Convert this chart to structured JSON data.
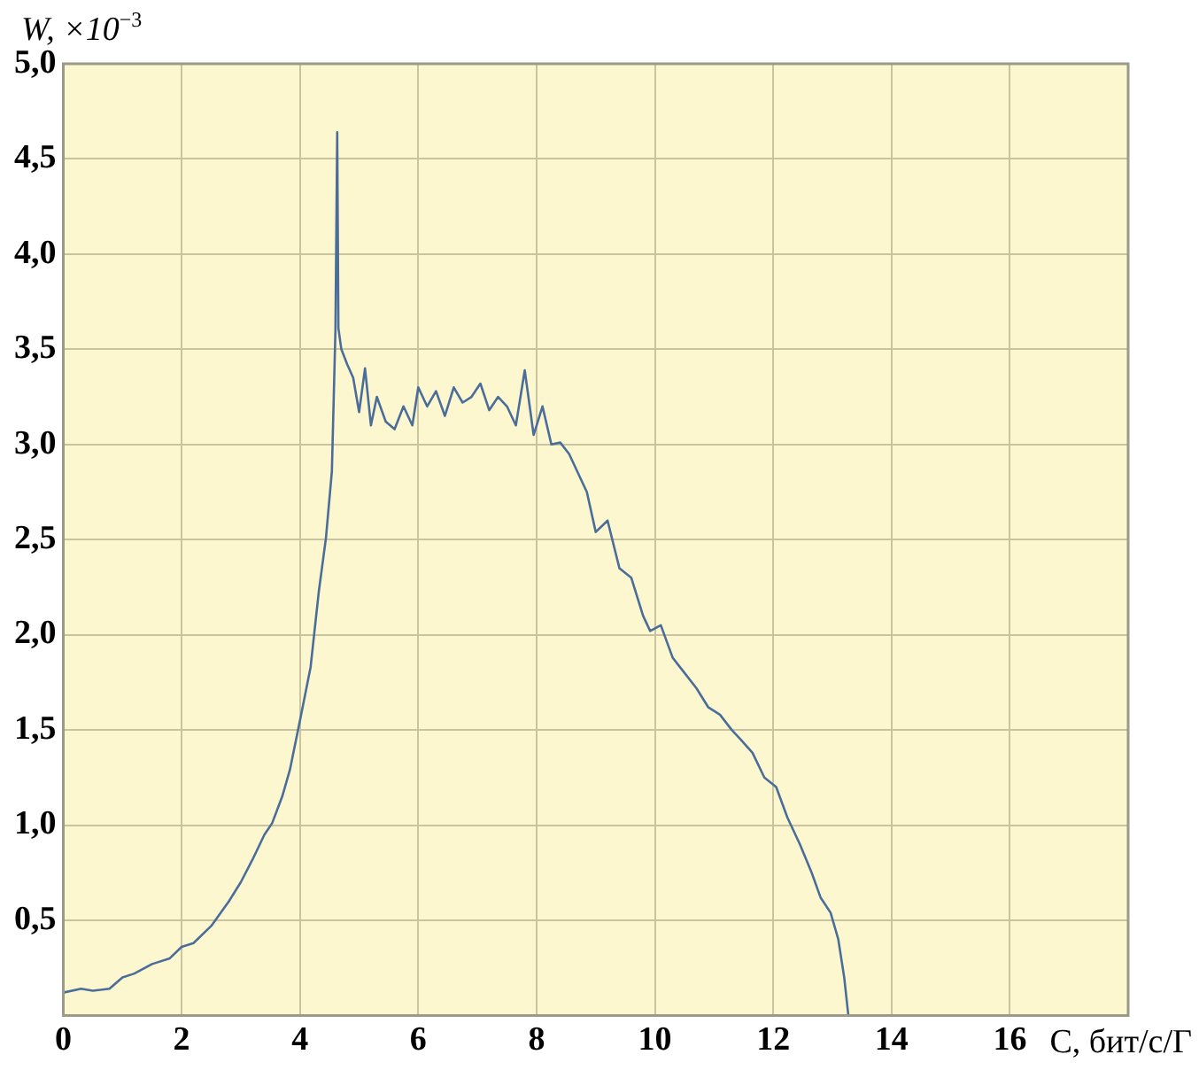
{
  "chart_data": {
    "type": "line",
    "xlabel": "C, бит/с/Г",
    "ylabel": "W,  ×10$^{−3}$",
    "x": [
      0,
      0.3,
      0.5,
      0.78,
      1.0,
      1.2,
      1.5,
      1.8,
      2.0,
      2.2,
      2.5,
      2.8,
      3.0,
      3.2,
      3.4,
      3.53,
      3.7,
      3.83,
      4.02,
      4.18,
      4.32,
      4.44,
      4.54,
      4.6,
      4.63,
      4.65,
      4.7,
      4.8,
      4.9,
      5.0,
      5.1,
      5.2,
      5.3,
      5.45,
      5.6,
      5.75,
      5.9,
      6.0,
      6.15,
      6.3,
      6.45,
      6.6,
      6.75,
      6.9,
      7.05,
      7.2,
      7.35,
      7.5,
      7.65,
      7.8,
      7.95,
      8.1,
      8.25,
      8.4,
      8.55,
      8.7,
      8.85,
      9.0,
      9.2,
      9.4,
      9.6,
      9.8,
      9.92,
      10.1,
      10.3,
      10.5,
      10.7,
      10.9,
      11.1,
      11.3,
      11.45,
      11.65,
      11.85,
      12.05,
      12.24,
      12.45,
      12.65,
      12.8,
      12.97,
      13.1,
      13.2,
      13.27
    ],
    "values": [
      0.12,
      0.14,
      0.13,
      0.14,
      0.2,
      0.22,
      0.27,
      0.3,
      0.36,
      0.38,
      0.47,
      0.6,
      0.7,
      0.82,
      0.95,
      1.01,
      1.15,
      1.29,
      1.58,
      1.83,
      2.23,
      2.51,
      2.86,
      3.6,
      4.64,
      3.61,
      3.5,
      3.42,
      3.35,
      3.17,
      3.4,
      3.1,
      3.25,
      3.12,
      3.08,
      3.2,
      3.1,
      3.3,
      3.2,
      3.28,
      3.15,
      3.3,
      3.22,
      3.25,
      3.32,
      3.18,
      3.25,
      3.2,
      3.1,
      3.39,
      3.05,
      3.2,
      3.0,
      3.01,
      2.95,
      2.85,
      2.75,
      2.54,
      2.6,
      2.35,
      2.3,
      2.1,
      2.02,
      2.05,
      1.88,
      1.8,
      1.72,
      1.62,
      1.58,
      1.5,
      1.45,
      1.38,
      1.25,
      1.2,
      1.04,
      0.9,
      0.75,
      0.62,
      0.54,
      0.4,
      0.2,
      0
    ],
    "color": "#4a6d9a",
    "xlim": [
      0,
      18
    ],
    "xticks": [
      0,
      2,
      4,
      6,
      8,
      10,
      12,
      14,
      16,
      {
        "value": 18,
        "label": null
      }
    ],
    "ylim": [
      0,
      5
    ],
    "yticks": [
      {
        "value": 0,
        "label": null
      },
      {
        "value": 0.5,
        "label": "0,5"
      },
      {
        "value": 1,
        "label": "1,0"
      },
      {
        "value": 1.5,
        "label": "1,5"
      },
      {
        "value": 2,
        "label": "2,0"
      },
      {
        "value": 2.5,
        "label": "2,5"
      },
      {
        "value": 3,
        "label": "3,0"
      },
      {
        "value": 3.5,
        "label": "3,5"
      },
      {
        "value": 4,
        "label": "4,0"
      },
      {
        "value": 4.5,
        "label": "4,5"
      },
      {
        "value": 5,
        "label": "5,0"
      }
    ],
    "grid": true,
    "marker": "none",
    "line_style": "solid",
    "legend": false
  }
}
